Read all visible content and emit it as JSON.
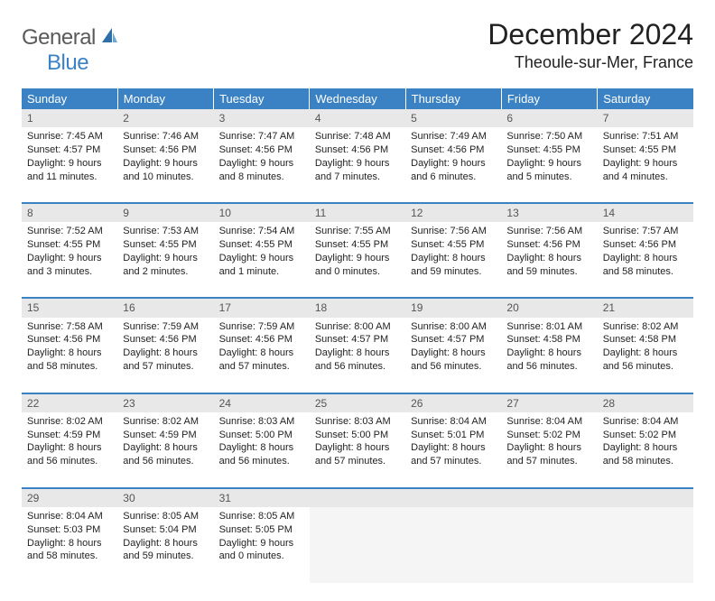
{
  "brand": {
    "general": "General",
    "blue": "Blue"
  },
  "title": "December 2024",
  "location": "Theoule-sur-Mer, France",
  "colors": {
    "header_bg": "#3b82c4",
    "header_text": "#ffffff",
    "daynum_bg": "#e8e8e8",
    "row_divider": "#3b82c4",
    "text": "#222222",
    "logo_gray": "#5a5a5a",
    "logo_blue": "#3b82c4"
  },
  "weekdays": [
    "Sunday",
    "Monday",
    "Tuesday",
    "Wednesday",
    "Thursday",
    "Friday",
    "Saturday"
  ],
  "weeks": [
    [
      {
        "n": "1",
        "sr": "7:45 AM",
        "ss": "4:57 PM",
        "dl": "9 hours and 11 minutes."
      },
      {
        "n": "2",
        "sr": "7:46 AM",
        "ss": "4:56 PM",
        "dl": "9 hours and 10 minutes."
      },
      {
        "n": "3",
        "sr": "7:47 AM",
        "ss": "4:56 PM",
        "dl": "9 hours and 8 minutes."
      },
      {
        "n": "4",
        "sr": "7:48 AM",
        "ss": "4:56 PM",
        "dl": "9 hours and 7 minutes."
      },
      {
        "n": "5",
        "sr": "7:49 AM",
        "ss": "4:56 PM",
        "dl": "9 hours and 6 minutes."
      },
      {
        "n": "6",
        "sr": "7:50 AM",
        "ss": "4:55 PM",
        "dl": "9 hours and 5 minutes."
      },
      {
        "n": "7",
        "sr": "7:51 AM",
        "ss": "4:55 PM",
        "dl": "9 hours and 4 minutes."
      }
    ],
    [
      {
        "n": "8",
        "sr": "7:52 AM",
        "ss": "4:55 PM",
        "dl": "9 hours and 3 minutes."
      },
      {
        "n": "9",
        "sr": "7:53 AM",
        "ss": "4:55 PM",
        "dl": "9 hours and 2 minutes."
      },
      {
        "n": "10",
        "sr": "7:54 AM",
        "ss": "4:55 PM",
        "dl": "9 hours and 1 minute."
      },
      {
        "n": "11",
        "sr": "7:55 AM",
        "ss": "4:55 PM",
        "dl": "9 hours and 0 minutes."
      },
      {
        "n": "12",
        "sr": "7:56 AM",
        "ss": "4:55 PM",
        "dl": "8 hours and 59 minutes."
      },
      {
        "n": "13",
        "sr": "7:56 AM",
        "ss": "4:56 PM",
        "dl": "8 hours and 59 minutes."
      },
      {
        "n": "14",
        "sr": "7:57 AM",
        "ss": "4:56 PM",
        "dl": "8 hours and 58 minutes."
      }
    ],
    [
      {
        "n": "15",
        "sr": "7:58 AM",
        "ss": "4:56 PM",
        "dl": "8 hours and 58 minutes."
      },
      {
        "n": "16",
        "sr": "7:59 AM",
        "ss": "4:56 PM",
        "dl": "8 hours and 57 minutes."
      },
      {
        "n": "17",
        "sr": "7:59 AM",
        "ss": "4:56 PM",
        "dl": "8 hours and 57 minutes."
      },
      {
        "n": "18",
        "sr": "8:00 AM",
        "ss": "4:57 PM",
        "dl": "8 hours and 56 minutes."
      },
      {
        "n": "19",
        "sr": "8:00 AM",
        "ss": "4:57 PM",
        "dl": "8 hours and 56 minutes."
      },
      {
        "n": "20",
        "sr": "8:01 AM",
        "ss": "4:58 PM",
        "dl": "8 hours and 56 minutes."
      },
      {
        "n": "21",
        "sr": "8:02 AM",
        "ss": "4:58 PM",
        "dl": "8 hours and 56 minutes."
      }
    ],
    [
      {
        "n": "22",
        "sr": "8:02 AM",
        "ss": "4:59 PM",
        "dl": "8 hours and 56 minutes."
      },
      {
        "n": "23",
        "sr": "8:02 AM",
        "ss": "4:59 PM",
        "dl": "8 hours and 56 minutes."
      },
      {
        "n": "24",
        "sr": "8:03 AM",
        "ss": "5:00 PM",
        "dl": "8 hours and 56 minutes."
      },
      {
        "n": "25",
        "sr": "8:03 AM",
        "ss": "5:00 PM",
        "dl": "8 hours and 57 minutes."
      },
      {
        "n": "26",
        "sr": "8:04 AM",
        "ss": "5:01 PM",
        "dl": "8 hours and 57 minutes."
      },
      {
        "n": "27",
        "sr": "8:04 AM",
        "ss": "5:02 PM",
        "dl": "8 hours and 57 minutes."
      },
      {
        "n": "28",
        "sr": "8:04 AM",
        "ss": "5:02 PM",
        "dl": "8 hours and 58 minutes."
      }
    ],
    [
      {
        "n": "29",
        "sr": "8:04 AM",
        "ss": "5:03 PM",
        "dl": "8 hours and 58 minutes."
      },
      {
        "n": "30",
        "sr": "8:05 AM",
        "ss": "5:04 PM",
        "dl": "8 hours and 59 minutes."
      },
      {
        "n": "31",
        "sr": "8:05 AM",
        "ss": "5:05 PM",
        "dl": "9 hours and 0 minutes."
      },
      null,
      null,
      null,
      null
    ]
  ],
  "labels": {
    "sunrise": "Sunrise: ",
    "sunset": "Sunset: ",
    "daylight": "Daylight: "
  }
}
